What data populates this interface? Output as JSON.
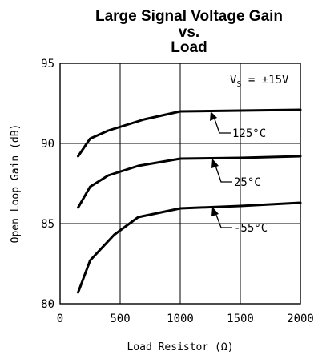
{
  "chart_data": {
    "type": "line",
    "title_lines": [
      "Large Signal Voltage Gain",
      "vs.",
      "Load"
    ],
    "xlabel": "Load Resistor (Ω)",
    "ylabel": "Open Loop Gain (dB)",
    "xlim": [
      0,
      2000
    ],
    "ylim": [
      80,
      95
    ],
    "xticks": [
      0,
      500,
      1000,
      1500,
      2000
    ],
    "yticks": [
      80,
      85,
      90,
      95
    ],
    "grid": true,
    "condition": {
      "main": "V",
      "sub": "S",
      "rest": " = ±15V"
    },
    "series": [
      {
        "name": "125°C",
        "x": [
          150,
          250,
          400,
          700,
          1000,
          1500,
          2000
        ],
        "y": [
          89.2,
          90.3,
          90.8,
          91.5,
          92.0,
          92.05,
          92.1
        ]
      },
      {
        "name": "25°C",
        "x": [
          150,
          250,
          400,
          650,
          1000,
          1500,
          2000
        ],
        "y": [
          86.0,
          87.3,
          88.0,
          88.6,
          89.05,
          89.1,
          89.2
        ]
      },
      {
        "name": "-55°C",
        "x": [
          150,
          250,
          450,
          650,
          1000,
          1500,
          2000
        ],
        "y": [
          80.7,
          82.7,
          84.3,
          85.4,
          85.95,
          86.1,
          86.3
        ]
      }
    ]
  }
}
